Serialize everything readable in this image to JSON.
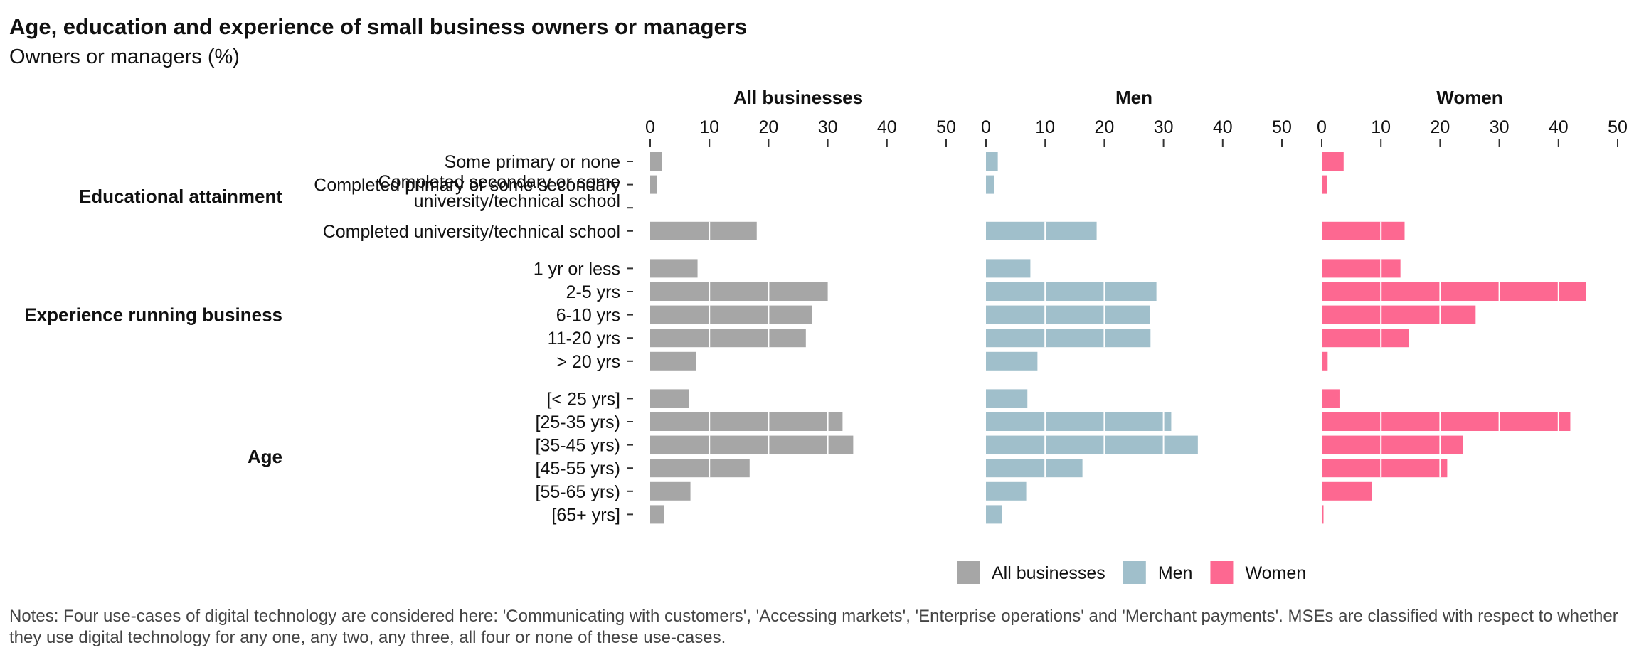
{
  "title": "Age, education and experience of small business owners or managers",
  "subtitle": "Owners or managers (%)",
  "notes": "Notes: Four use-cases of digital technology are considered here: 'Communicating with customers', 'Accessing markets', 'Enterprise operations' and 'Merchant payments'. MSEs are classified with respect to whether they use digital technology for any one, any two, any three, all four or none of these use-cases.",
  "chart_data": {
    "type": "bar",
    "orientation": "horizontal",
    "xlim": [
      0,
      50
    ],
    "x_ticks": [
      0,
      10,
      20,
      30,
      40,
      50
    ],
    "grid": true,
    "legend_position": "bottom",
    "groups": [
      {
        "name": "Educational attainment",
        "categories": [
          "Some primary or none",
          "Completed primary or some secondary",
          "Completed secondary or some university/technical school",
          "Completed university/technical school"
        ]
      },
      {
        "name": "Experience running business",
        "categories": [
          "1 yr or less",
          "2-5 yrs",
          "6-10 yrs",
          "11-20 yrs",
          "> 20 yrs"
        ]
      },
      {
        "name": "Age",
        "categories": [
          "[< 25 yrs]",
          "[25-35 yrs)",
          "[35-45 yrs)",
          "[45-55 yrs)",
          "[55-65 yrs)",
          "[65+ yrs]"
        ]
      }
    ],
    "series": [
      {
        "name": "All businesses",
        "color": "#a6a6a6",
        "values": [
          [
            2.0,
            1.2,
            0,
            18.0
          ],
          [
            8.0,
            30.0,
            27.3,
            26.3,
            7.8
          ],
          [
            6.5,
            32.5,
            34.3,
            16.8,
            6.8,
            2.3
          ]
        ]
      },
      {
        "name": "Men",
        "color": "#a0bfcb",
        "values": [
          [
            2.0,
            1.4,
            0,
            18.7
          ],
          [
            7.5,
            28.8,
            27.7,
            27.8,
            8.7
          ],
          [
            7.0,
            31.3,
            35.8,
            16.3,
            6.8,
            2.7
          ]
        ]
      },
      {
        "name": "Women",
        "color": "#fd6891",
        "values": [
          [
            3.7,
            0.9,
            0,
            14.0
          ],
          [
            13.3,
            44.7,
            26.0,
            14.7,
            1.0
          ],
          [
            3.0,
            42.0,
            23.8,
            21.2,
            8.5,
            0.3
          ]
        ]
      }
    ]
  }
}
